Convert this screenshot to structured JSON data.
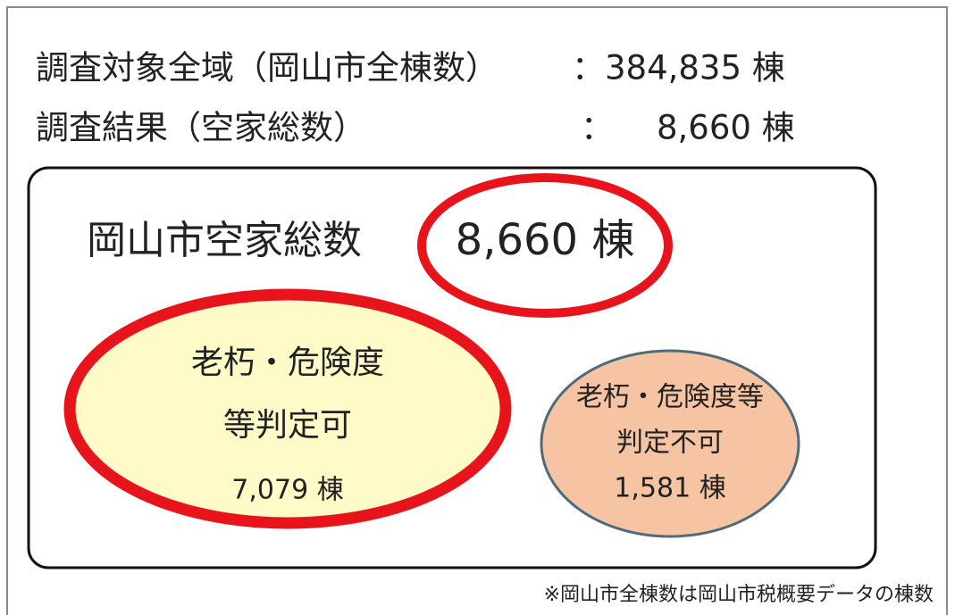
{
  "summary": {
    "total": {
      "label": "調査対象全域（岡山市全棟数）",
      "value": "：384,835 棟"
    },
    "vacant": {
      "label": "調査結果（空家総数）",
      "colon": "：",
      "value": "8,660 棟"
    }
  },
  "box": {
    "title": "岡山市空家総数",
    "total": "8,660 棟",
    "judgeable": {
      "line1": "老朽・危険度",
      "line2": "等判定可",
      "count": "7,079 棟"
    },
    "unjudgeable": {
      "line1": "老朽・危険度等",
      "line2": "判定不可",
      "count": "1,581 棟"
    }
  },
  "footnote": "※岡山市全棟数は岡山市税概要データの棟数"
}
